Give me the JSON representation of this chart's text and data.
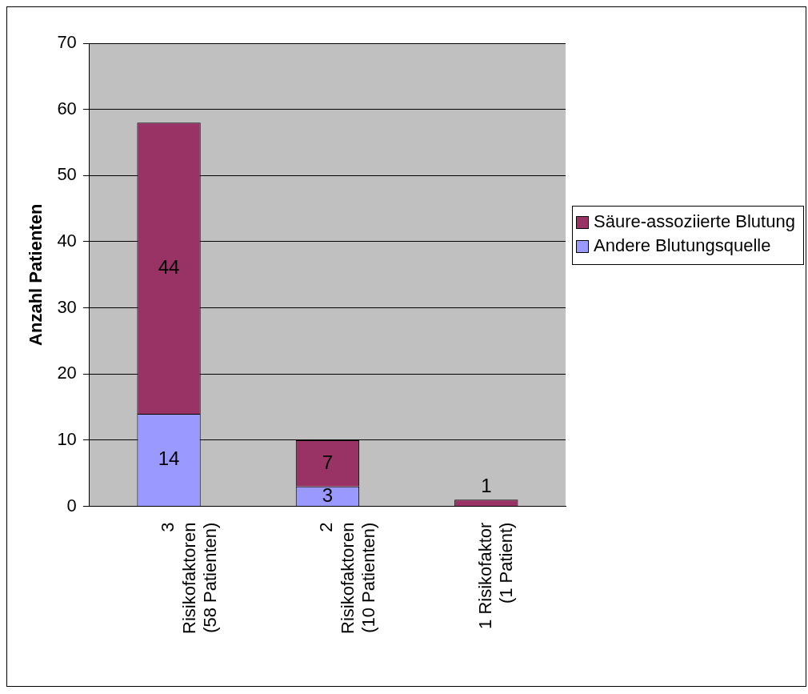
{
  "chart_data": {
    "type": "bar",
    "ylabel": "Anzahl Patienten",
    "categories": [
      "3\nRisikofaktoren\n(58 Patienten)",
      "2\nRisikofaktoren\n(10 Patienten)",
      "1 Risikofaktor\n(1 Patient)"
    ],
    "stacked": true,
    "ylim": [
      0,
      70
    ],
    "yticks": [
      0,
      10,
      20,
      30,
      40,
      50,
      60,
      70
    ],
    "grid": "y",
    "legend": "right",
    "series": [
      {
        "name": "Andere Blutungsquelle",
        "color": "#9999ff",
        "values": [
          14,
          3,
          0
        ],
        "value_labels": [
          "14",
          "3",
          null
        ]
      },
      {
        "name": "Säure-assoziierte Blutung",
        "color": "#993366",
        "values": [
          44,
          7,
          1
        ],
        "value_labels": [
          "44",
          "7",
          "1"
        ]
      }
    ]
  }
}
